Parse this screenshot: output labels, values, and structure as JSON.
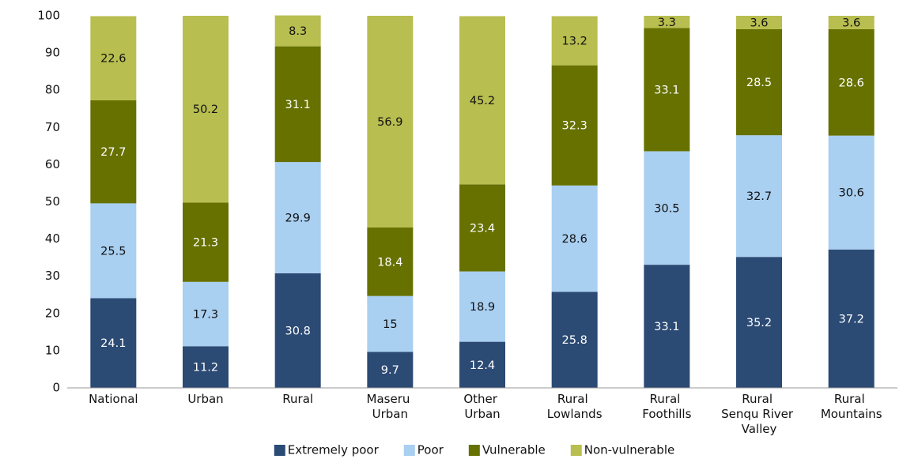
{
  "chart_data": {
    "type": "stacked_bar",
    "categories": [
      "National",
      "Urban",
      "Rural",
      "Maseru Urban",
      "Other Urban",
      "Rural Lowlands",
      "Rural Foothills",
      "Rural Senqu River Valley",
      "Rural Mountains"
    ],
    "series": [
      {
        "name": "Extremely poor",
        "color": "#2b4a74",
        "values": [
          24.1,
          11.2,
          30.8,
          9.7,
          12.4,
          25.8,
          33.1,
          35.2,
          37.2
        ]
      },
      {
        "name": "Poor",
        "color": "#a9cff1",
        "values": [
          25.5,
          17.3,
          29.9,
          15,
          18.9,
          28.6,
          30.5,
          32.7,
          30.6
        ]
      },
      {
        "name": "Vulnerable",
        "color": "#667100",
        "values": [
          27.7,
          21.3,
          31.1,
          18.4,
          23.4,
          32.3,
          33.1,
          28.5,
          28.6
        ]
      },
      {
        "name": "Non-vulnerable",
        "color": "#b8be4f",
        "values": [
          22.6,
          50.2,
          8.3,
          56.9,
          45.2,
          13.2,
          3.3,
          3.6,
          3.6
        ]
      }
    ],
    "ylim": [
      0,
      100
    ],
    "yticks": [
      0,
      10,
      20,
      30,
      40,
      50,
      60,
      70,
      80,
      90,
      100
    ],
    "grid": false,
    "legend": "bottom"
  }
}
